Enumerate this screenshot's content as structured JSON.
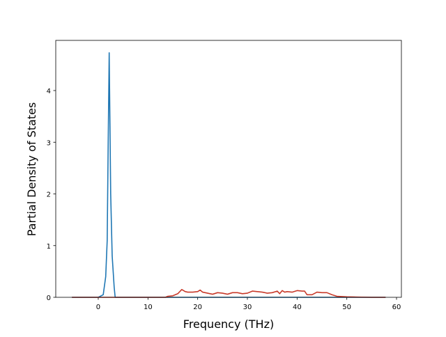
{
  "chart_data": {
    "type": "line",
    "xlabel": "Frequency (THz)",
    "ylabel": "Partial Density of States",
    "x": [
      -5.3,
      -2,
      0,
      1,
      1.5,
      1.8,
      2.0,
      2.2,
      2.5,
      2.8,
      3.2,
      3.4,
      5,
      10,
      13.5,
      14,
      15,
      16,
      16.8,
      17.5,
      18,
      19,
      20,
      20.5,
      21,
      22,
      23,
      24,
      25,
      26,
      27,
      28,
      29,
      30,
      31,
      32,
      33,
      34,
      35,
      36,
      36.5,
      37,
      37.5,
      38,
      39,
      40,
      41,
      41.5,
      42,
      43,
      44,
      45,
      46,
      47,
      48,
      50,
      52,
      55,
      57.8
    ],
    "series": [
      {
        "color": "#1f77b4",
        "values": [
          0,
          0,
          0,
          0.05,
          0.4,
          1.1,
          3.0,
          4.73,
          2.0,
          0.8,
          0.2,
          0,
          0,
          0,
          0,
          0,
          0,
          0,
          0,
          0,
          0,
          0,
          0,
          0,
          0,
          0,
          0,
          0,
          0,
          0,
          0,
          0,
          0,
          0,
          0,
          0,
          0,
          0,
          0,
          0,
          0,
          0,
          0,
          0,
          0,
          0,
          0,
          0,
          0,
          0,
          0,
          0,
          0,
          0,
          0,
          0,
          0,
          0,
          0
        ]
      },
      {
        "color": "#c83a2a",
        "values": [
          0,
          0,
          0,
          0,
          0,
          0,
          0,
          0,
          0,
          0,
          0,
          0,
          0,
          0,
          0,
          0.02,
          0.03,
          0.07,
          0.15,
          0.11,
          0.1,
          0.1,
          0.11,
          0.14,
          0.1,
          0.08,
          0.06,
          0.09,
          0.08,
          0.06,
          0.09,
          0.09,
          0.07,
          0.08,
          0.12,
          0.11,
          0.1,
          0.08,
          0.09,
          0.12,
          0.07,
          0.13,
          0.1,
          0.11,
          0.1,
          0.13,
          0.12,
          0.12,
          0.05,
          0.05,
          0.1,
          0.09,
          0.09,
          0.05,
          0.02,
          0.01,
          0.005,
          0,
          0
        ]
      }
    ],
    "xlim": [
      -8.55,
      60.98
    ],
    "ylim": [
      0,
      4.97
    ],
    "xticks": [
      0,
      10,
      20,
      30,
      40,
      50,
      60
    ],
    "yticks": [
      0,
      1,
      2,
      3,
      4
    ]
  }
}
